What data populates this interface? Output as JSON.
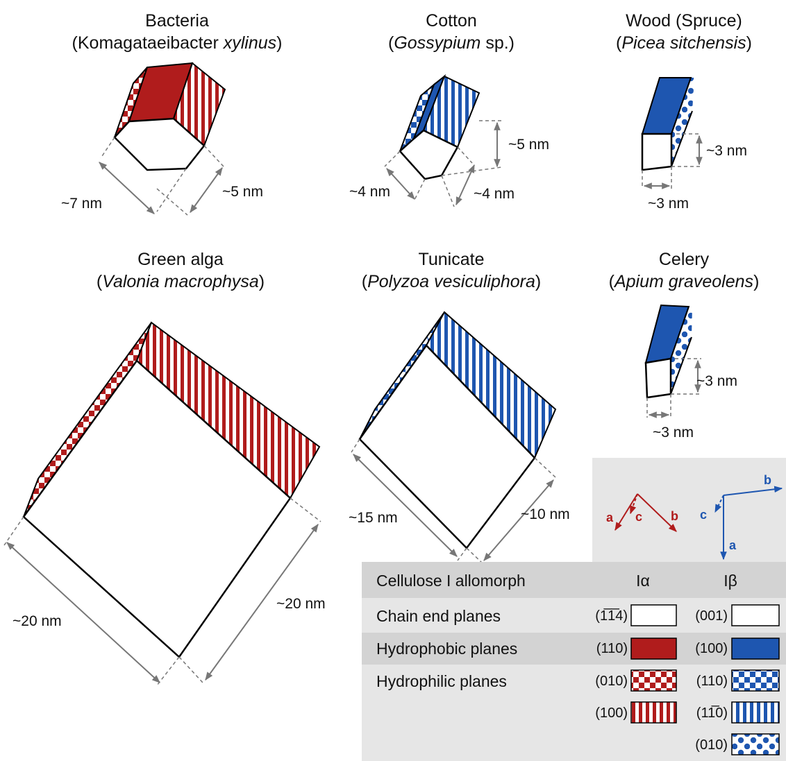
{
  "organisms": [
    {
      "key": "bacteria",
      "name": "Bacteria",
      "species_plain": "Komagataeibacter",
      "species_italic": "xylinus",
      "dims": [
        "~7 nm",
        "~5 nm"
      ]
    },
    {
      "key": "cotton",
      "name": "Cotton",
      "species_italic": "Gossypium",
      "species_plain": "sp.",
      "dims": [
        "~4 nm",
        "~4 nm",
        "~5 nm"
      ]
    },
    {
      "key": "wood",
      "name": "Wood (Spruce)",
      "species_italic": "Picea sitchensis",
      "dims": [
        "~3 nm",
        "~3 nm"
      ]
    },
    {
      "key": "alga",
      "name": "Green alga",
      "species_italic": "Valonia macrophysa",
      "dims": [
        "~20 nm",
        "~20 nm"
      ]
    },
    {
      "key": "tunicate",
      "name": "Tunicate",
      "species_italic": "Polyzoa vesiculiphora",
      "dims": [
        "~15 nm",
        "~10 nm"
      ]
    },
    {
      "key": "celery",
      "name": "Celery",
      "species_italic": "Apium graveolens",
      "dims": [
        "~3 nm",
        "~3 nm"
      ]
    }
  ],
  "axes": {
    "alpha": {
      "a": "a",
      "b": "b",
      "c": "c"
    },
    "beta": {
      "a": "a",
      "b": "b",
      "c": "c"
    }
  },
  "legend": {
    "header": {
      "label": "Cellulose I allomorph",
      "alpha": "Iα",
      "beta": "Iβ"
    },
    "rows": [
      {
        "label": "Chain end planes",
        "alpha_hkl": "(1̅1̅4)",
        "beta_hkl": "(001)"
      },
      {
        "label": "Hydrophobic planes",
        "alpha_hkl": "(110)",
        "beta_hkl": "(100)"
      },
      {
        "label": "Hydrophilic planes",
        "alpha_hkl": "(010)",
        "beta_hkl": "(110)"
      },
      {
        "label": "",
        "alpha_hkl": "(100)",
        "beta_hkl": "(11̅0)"
      },
      {
        "label": "",
        "alpha_hkl": "",
        "beta_hkl": "(010)"
      }
    ]
  },
  "colors": {
    "red": "#b01c1c",
    "blue": "#1e56b0",
    "legend_bg": "#e6e6e6",
    "legend_header": "#d3d3d3",
    "dim_line": "#777777"
  }
}
